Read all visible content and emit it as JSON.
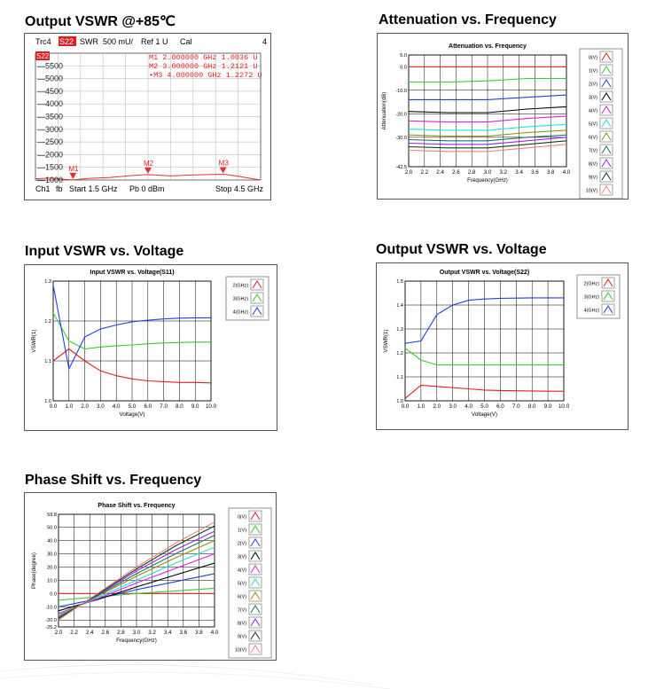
{
  "sections": {
    "s1_title": "Output VSWR @+85℃",
    "s2_title": "Attenuation vs. Frequency",
    "s3_title": "Input VSWR vs. Voltage",
    "s4_title": "Output VSWR vs. Voltage",
    "s5_title": "Phase Shift vs. Frequency"
  },
  "analyzer": {
    "header": [
      "Trc4",
      "S22",
      "SWR",
      "500 mU/",
      "Ref 1 U",
      "Cal",
      "4"
    ],
    "badge": "S22",
    "yticks": [
      "5500",
      "5000",
      "4500",
      "4000",
      "3500",
      "3000",
      "2500",
      "2000",
      "1500",
      "1000"
    ],
    "markers": [
      {
        "label": "M1",
        "text": "M1   2.000000 GHz   1.0036 U"
      },
      {
        "label": "M2",
        "text": "M2   3.000000 GHz   1.2121 U"
      },
      {
        "label": "M3",
        "text": "•M3   4.000000 GHz   1.2272 U"
      }
    ],
    "footer": {
      "ch": "Ch1",
      "fb": "fb",
      "start": "Start  1.5 GHz",
      "pb": "Pb    0 dBm",
      "stop": "Stop  4.5 GHz"
    },
    "colors": {
      "trace": "#e83030",
      "grid": "#c8c8c8"
    }
  },
  "chart_data": [
    {
      "id": "attenuation",
      "type": "line",
      "title": "Attenuation vs. Frequency",
      "xlabel": "Frequency(GHz)",
      "ylabel": "Attenuation(dB)",
      "xlim": [
        2.0,
        4.0
      ],
      "ylim": [
        -42.5,
        5.0
      ],
      "x_ticks": [
        "2.0",
        "2.2",
        "2.4",
        "2.6",
        "2.8",
        "3.0",
        "3.2",
        "3.4",
        "3.6",
        "3.8",
        "4.0"
      ],
      "y_ticks": [
        {
          "v": 5.0,
          "label": "5.0"
        },
        {
          "v": 0.0,
          "label": "0.0"
        },
        {
          "v": -10.0,
          "label": "-10.0"
        },
        {
          "v": -20.0,
          "label": "-20.0"
        },
        {
          "v": -30.0,
          "label": "-30.0"
        },
        {
          "v": -42.5,
          "label": "-42.5"
        }
      ],
      "x": [
        2.0,
        2.5,
        3.0,
        3.5,
        4.0
      ],
      "series": [
        {
          "name": "0(V)",
          "color": "#e02020",
          "values": [
            0.0,
            0.0,
            0.0,
            0.0,
            0.0
          ]
        },
        {
          "name": "1(V)",
          "color": "#30d030",
          "values": [
            -6.5,
            -6.5,
            -6.0,
            -5.0,
            -5.0
          ]
        },
        {
          "name": "2(V)",
          "color": "#2040e0",
          "values": [
            -14.0,
            -14.0,
            -14.0,
            -13.0,
            -12.0
          ]
        },
        {
          "name": "3(V)",
          "color": "#000000",
          "values": [
            -19.0,
            -19.5,
            -19.5,
            -18.0,
            -17.0
          ]
        },
        {
          "name": "4(V)",
          "color": "#e020e0",
          "values": [
            -23.0,
            -23.5,
            -23.5,
            -22.0,
            -21.0
          ]
        },
        {
          "name": "5(V)",
          "color": "#20e0e0",
          "values": [
            -26.5,
            -27.0,
            -27.0,
            -25.5,
            -24.5
          ]
        },
        {
          "name": "6(V)",
          "color": "#909000",
          "values": [
            -29.0,
            -29.5,
            -29.5,
            -28.0,
            -27.0
          ]
        },
        {
          "name": "7(V)",
          "color": "#207070",
          "values": [
            -31.0,
            -31.5,
            -31.5,
            -30.0,
            -29.0
          ]
        },
        {
          "name": "8(V)",
          "color": "#a020f0",
          "values": [
            -32.5,
            -33.0,
            -33.0,
            -31.5,
            -30.0
          ]
        },
        {
          "name": "9(V)",
          "color": "#104010",
          "values": [
            -34.0,
            -34.5,
            -34.5,
            -33.0,
            -31.5
          ]
        },
        {
          "name": "10(V)",
          "color": "#f08080",
          "values": [
            -35.5,
            -36.0,
            -36.0,
            -34.5,
            -33.0
          ]
        }
      ]
    },
    {
      "id": "input_vswr",
      "type": "line",
      "title": "Input VSWR vs. Voltage(S11)",
      "xlabel": "Voltage(V)",
      "ylabel": "VSWR(1)",
      "xlim": [
        0,
        10
      ],
      "ylim": [
        1.0,
        1.3
      ],
      "x_ticks": [
        "0.0",
        "1.0",
        "2.0",
        "3.0",
        "4.0",
        "5.0",
        "6.0",
        "7.0",
        "8.0",
        "9.0",
        "10.0"
      ],
      "y_ticks": [
        {
          "v": 1.0,
          "label": "1.0"
        },
        {
          "v": 1.1,
          "label": "1.1"
        },
        {
          "v": 1.2,
          "label": "1.2"
        },
        {
          "v": 1.3,
          "label": "1.3"
        }
      ],
      "x": [
        0,
        1,
        2,
        3,
        4,
        5,
        6,
        7,
        8,
        9,
        10
      ],
      "series": [
        {
          "name": "2(GHz)",
          "color": "#e02020",
          "values": [
            1.1,
            1.13,
            1.1,
            1.075,
            1.063,
            1.055,
            1.05,
            1.048,
            1.046,
            1.046,
            1.045
          ]
        },
        {
          "name": "3(GHz)",
          "color": "#30d030",
          "values": [
            1.22,
            1.15,
            1.13,
            1.135,
            1.138,
            1.14,
            1.143,
            1.145,
            1.146,
            1.147,
            1.147
          ]
        },
        {
          "name": "4(GHz)",
          "color": "#2040e0",
          "values": [
            1.29,
            1.08,
            1.16,
            1.18,
            1.19,
            1.198,
            1.202,
            1.205,
            1.207,
            1.208,
            1.208
          ]
        }
      ]
    },
    {
      "id": "output_vswr",
      "type": "line",
      "title": "Output VSWR vs. Voltage(S22)",
      "xlabel": "Voltage(V)",
      "ylabel": "VSWR(1)",
      "xlim": [
        0,
        10
      ],
      "ylim": [
        1.0,
        1.5
      ],
      "x_ticks": [
        "0.0",
        "1.0",
        "2.0",
        "3.0",
        "4.0",
        "5.0",
        "6.0",
        "7.0",
        "8.0",
        "9.0",
        "10.0"
      ],
      "y_ticks": [
        {
          "v": 1.0,
          "label": "1.0"
        },
        {
          "v": 1.1,
          "label": "1.1"
        },
        {
          "v": 1.2,
          "label": "1.2"
        },
        {
          "v": 1.3,
          "label": "1.3"
        },
        {
          "v": 1.4,
          "label": "1.4"
        },
        {
          "v": 1.5,
          "label": "1.5"
        }
      ],
      "x": [
        0,
        1,
        2,
        3,
        4,
        5,
        6,
        7,
        8,
        9,
        10
      ],
      "series": [
        {
          "name": "2(GHz)",
          "color": "#e02020",
          "values": [
            1.01,
            1.065,
            1.06,
            1.055,
            1.05,
            1.045,
            1.043,
            1.042,
            1.041,
            1.04,
            1.04
          ]
        },
        {
          "name": "3(GHz)",
          "color": "#30d030",
          "values": [
            1.22,
            1.17,
            1.15,
            1.15,
            1.15,
            1.15,
            1.15,
            1.15,
            1.15,
            1.15,
            1.15
          ]
        },
        {
          "name": "4(GHz)",
          "color": "#2040e0",
          "values": [
            1.24,
            1.25,
            1.36,
            1.4,
            1.42,
            1.425,
            1.428,
            1.429,
            1.43,
            1.43,
            1.43
          ]
        }
      ]
    },
    {
      "id": "phase_shift",
      "type": "line",
      "title": "Phase Shift vs. Frequency",
      "xlabel": "Frequency(GHz)",
      "ylabel": "Phase(degree)",
      "xlim": [
        2.0,
        4.0
      ],
      "ylim": [
        -25.2,
        59.8
      ],
      "x_ticks": [
        "2.0",
        "2.2",
        "2.4",
        "2.6",
        "2.8",
        "3.0",
        "3.2",
        "3.4",
        "3.6",
        "3.8",
        "4.0"
      ],
      "y_ticks": [
        {
          "v": 59.8,
          "label": "59.8"
        },
        {
          "v": 50.0,
          "label": "50.0"
        },
        {
          "v": 40.0,
          "label": "40.0"
        },
        {
          "v": 30.0,
          "label": "30.0"
        },
        {
          "v": 20.0,
          "label": "20.0"
        },
        {
          "v": 10.0,
          "label": "10.0"
        },
        {
          "v": 0.0,
          "label": "0.0"
        },
        {
          "v": -10.0,
          "label": "-10.0"
        },
        {
          "v": -20.0,
          "label": "-20.0"
        },
        {
          "v": -25.2,
          "label": "-25.2"
        }
      ],
      "x": [
        2.0,
        2.5,
        3.0,
        3.5,
        4.0
      ],
      "series": [
        {
          "name": "0(V)",
          "color": "#e02020",
          "values": [
            0.0,
            0.0,
            0.0,
            0.0,
            0.0
          ]
        },
        {
          "name": "1(V)",
          "color": "#30d030",
          "values": [
            -5.0,
            -2.5,
            0.0,
            2.0,
            4.0
          ]
        },
        {
          "name": "2(V)",
          "color": "#2040e0",
          "values": [
            -10.0,
            -4.0,
            3.0,
            9.0,
            15.0
          ]
        },
        {
          "name": "3(V)",
          "color": "#000000",
          "values": [
            -13.0,
            -4.5,
            5.0,
            14.0,
            23.0
          ]
        },
        {
          "name": "4(V)",
          "color": "#e020e0",
          "values": [
            -15.0,
            -4.0,
            8.0,
            19.0,
            30.0
          ]
        },
        {
          "name": "5(V)",
          "color": "#20e0e0",
          "values": [
            -16.0,
            -3.0,
            10.0,
            23.0,
            35.0
          ]
        },
        {
          "name": "6(V)",
          "color": "#909000",
          "values": [
            -17.0,
            -2.0,
            13.0,
            27.0,
            40.0
          ]
        },
        {
          "name": "7(V)",
          "color": "#207070",
          "values": [
            -18.0,
            -1.5,
            15.0,
            30.0,
            44.0
          ]
        },
        {
          "name": "8(V)",
          "color": "#a020f0",
          "values": [
            -18.5,
            -1.0,
            17.0,
            33.0,
            47.0
          ]
        },
        {
          "name": "9(V)",
          "color": "#104010",
          "values": [
            -19.0,
            -0.5,
            18.5,
            36.0,
            51.0
          ]
        },
        {
          "name": "10(V)",
          "color": "#f08080",
          "values": [
            -20.0,
            0.0,
            20.0,
            38.0,
            54.0
          ]
        }
      ]
    }
  ]
}
